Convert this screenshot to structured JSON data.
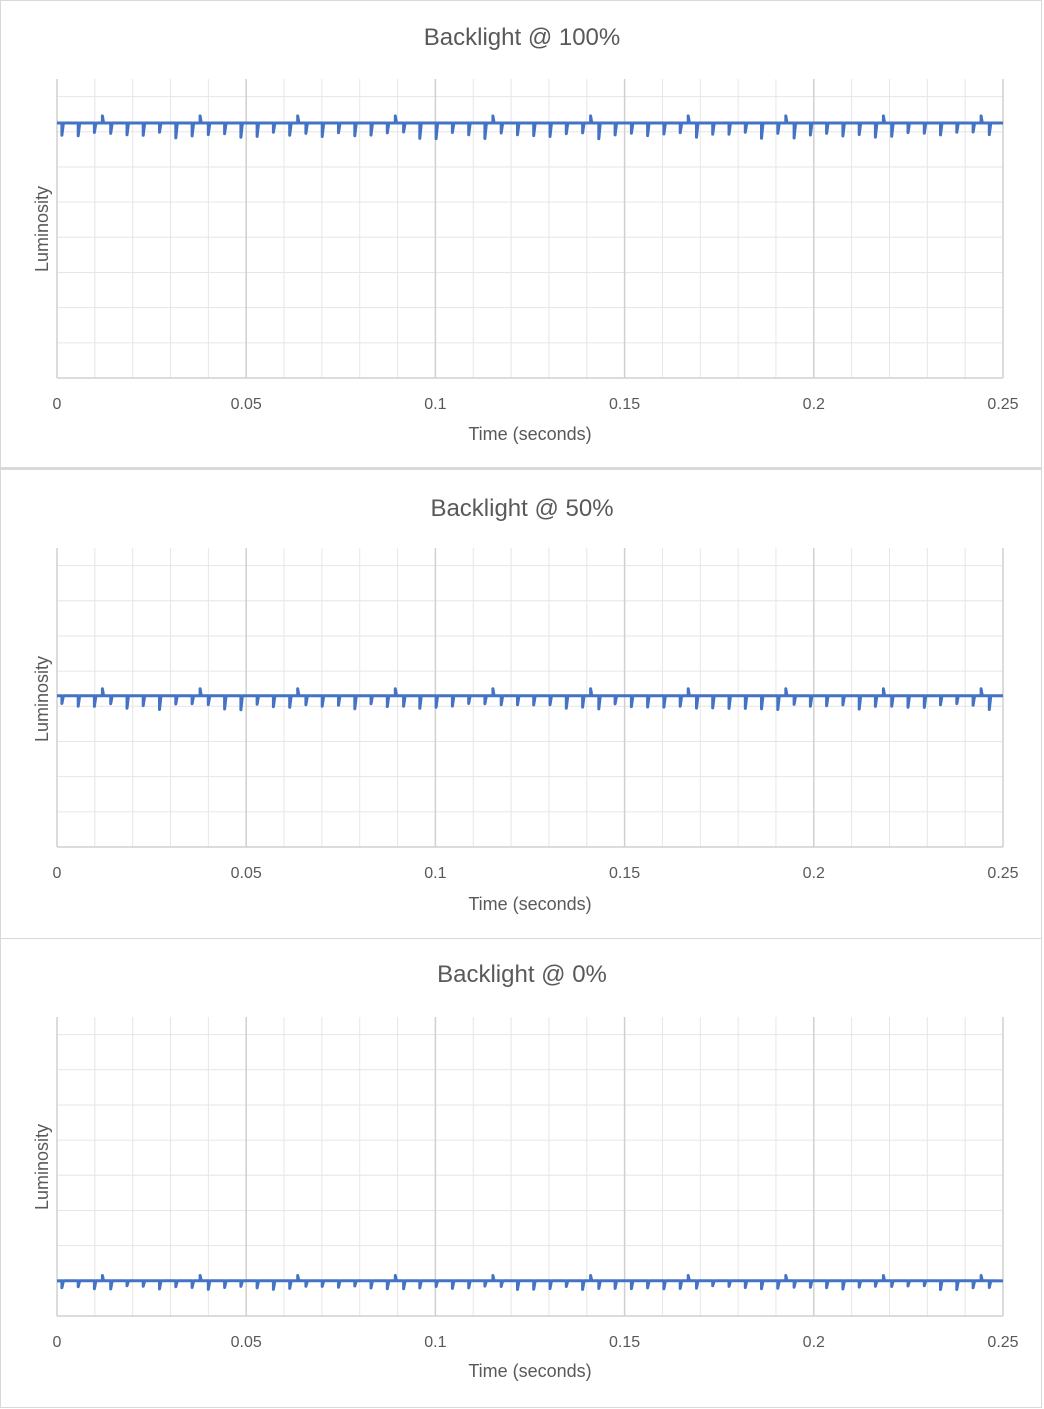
{
  "colors": {
    "series": "#4472c4",
    "major_grid": "#d0d0d0",
    "minor_grid": "#e6e6e6",
    "text": "#595959"
  },
  "chart_data": [
    {
      "type": "line",
      "title": "Backlight @ 100%",
      "xlabel": "Time (seconds)",
      "ylabel": "Luminosity",
      "xlim": [
        0,
        0.25
      ],
      "x_ticks": [
        "0",
        "0.05",
        "0.1",
        "0.15",
        "0.2",
        "0.25"
      ],
      "ylim": [
        0,
        8.5
      ],
      "grid": true,
      "legend": "none",
      "series": [
        {
          "baseline": 7.25,
          "dip_depth": 0.45,
          "spike_height": 0.2,
          "dip_period": 0.0043
        }
      ]
    },
    {
      "type": "line",
      "title": "Backlight @ 50%",
      "xlabel": "Time (seconds)",
      "ylabel": "Luminosity",
      "xlim": [
        0,
        0.25
      ],
      "x_ticks": [
        "0",
        "0.05",
        "0.1",
        "0.15",
        "0.2",
        "0.25"
      ],
      "ylim": [
        0,
        8.5
      ],
      "grid": true,
      "legend": "none",
      "series": [
        {
          "baseline": 4.3,
          "dip_depth": 0.4,
          "spike_height": 0.2,
          "dip_period": 0.0043
        }
      ]
    },
    {
      "type": "line",
      "title": "Backlight @ 0%",
      "xlabel": "Time (seconds)",
      "ylabel": "Luminosity",
      "xlim": [
        0,
        0.25
      ],
      "x_ticks": [
        "0",
        "0.05",
        "0.1",
        "0.15",
        "0.2",
        "0.25"
      ],
      "ylim": [
        0,
        8.5
      ],
      "grid": true,
      "legend": "none",
      "series": [
        {
          "baseline": 1.0,
          "dip_depth": 0.25,
          "spike_height": 0.15,
          "dip_period": 0.0043
        }
      ]
    }
  ]
}
